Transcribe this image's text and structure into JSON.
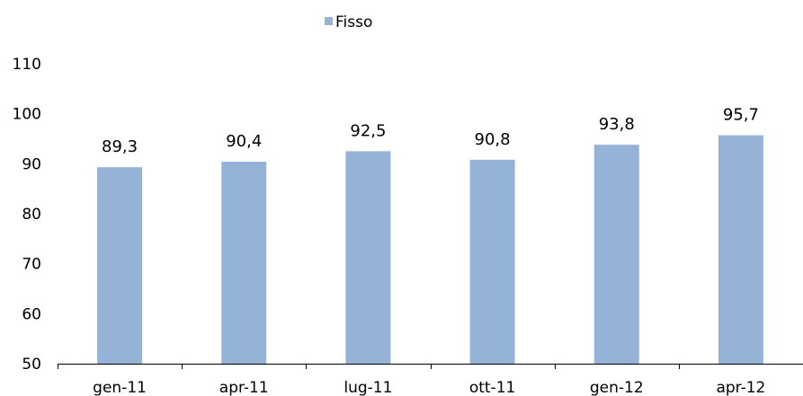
{
  "chart_data": {
    "type": "bar",
    "categories": [
      "gen-11",
      "apr-11",
      "lug-11",
      "ott-11",
      "gen-12",
      "apr-12"
    ],
    "series": [
      {
        "name": "Fisso",
        "values": [
          89.3,
          90.4,
          92.5,
          90.8,
          93.8,
          95.7
        ],
        "labels": [
          "89,3",
          "90,4",
          "92,5",
          "90,8",
          "93,8",
          "95,7"
        ],
        "color": "#95b3d7"
      }
    ],
    "ylim": [
      50,
      110
    ],
    "yticks": [
      50,
      60,
      70,
      80,
      90,
      100,
      110
    ],
    "ytick_labels": [
      "50",
      "60",
      "70",
      "80",
      "90",
      "100",
      "110"
    ],
    "grid": false,
    "legend_position": "top-center",
    "title": "",
    "xlabel": "",
    "ylabel": ""
  }
}
